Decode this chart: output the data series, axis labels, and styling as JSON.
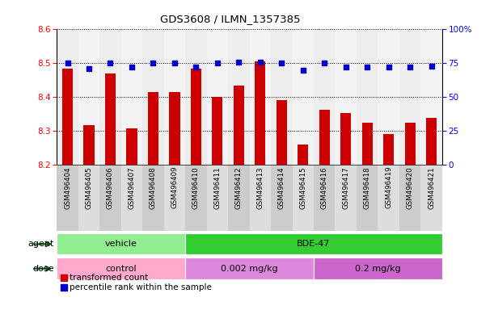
{
  "title": "GDS3608 / ILMN_1357385",
  "samples": [
    "GSM496404",
    "GSM496405",
    "GSM496406",
    "GSM496407",
    "GSM496408",
    "GSM496409",
    "GSM496410",
    "GSM496411",
    "GSM496412",
    "GSM496413",
    "GSM496414",
    "GSM496415",
    "GSM496416",
    "GSM496417",
    "GSM496418",
    "GSM496419",
    "GSM496420",
    "GSM496421"
  ],
  "transformed_count": [
    8.485,
    8.315,
    8.47,
    8.307,
    8.415,
    8.415,
    8.483,
    8.4,
    8.433,
    8.505,
    8.39,
    8.258,
    8.362,
    8.352,
    8.323,
    8.29,
    8.323,
    8.338
  ],
  "percentile_rank": [
    75,
    71,
    75,
    72,
    75,
    75,
    72,
    75,
    76,
    76,
    75,
    70,
    75,
    72,
    72,
    72,
    72,
    73
  ],
  "ylim_left": [
    8.2,
    8.6
  ],
  "ylim_right": [
    0,
    100
  ],
  "yticks_left": [
    8.2,
    8.3,
    8.4,
    8.5,
    8.6
  ],
  "yticks_right": [
    0,
    25,
    50,
    75,
    100
  ],
  "ytick_labels_right": [
    "0",
    "25",
    "50",
    "75",
    "100%"
  ],
  "bar_color": "#cc0000",
  "dot_color": "#0000cc",
  "agent_groups": [
    {
      "label": "vehicle",
      "start": 0,
      "end": 6,
      "color": "#90ee90"
    },
    {
      "label": "BDE-47",
      "start": 6,
      "end": 18,
      "color": "#33cc33"
    }
  ],
  "dose_groups": [
    {
      "label": "control",
      "start": 0,
      "end": 6,
      "color": "#ffaacc"
    },
    {
      "label": "0.002 mg/kg",
      "start": 6,
      "end": 12,
      "color": "#dd88dd"
    },
    {
      "label": "0.2 mg/kg",
      "start": 12,
      "end": 18,
      "color": "#cc66cc"
    }
  ],
  "legend_items": [
    {
      "label": "transformed count",
      "color": "#cc0000"
    },
    {
      "label": "percentile rank within the sample",
      "color": "#0000cc"
    }
  ],
  "agent_label": "agent",
  "dose_label": "dose",
  "arrow_color": "#006600",
  "xtick_bg_even": "#cccccc",
  "xtick_bg_odd": "#dddddd"
}
